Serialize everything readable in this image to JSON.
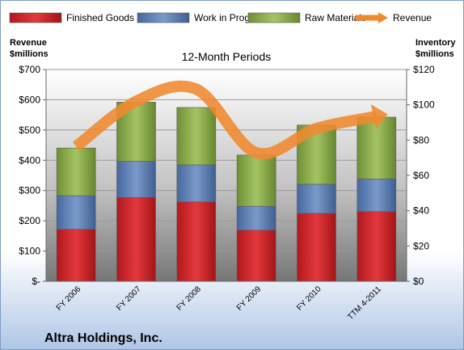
{
  "chart_data": {
    "type": "bar",
    "stacked": true,
    "subtitle": "12-Month Periods",
    "company": "Altra Holdings, Inc.",
    "left_axis_label": [
      "Revenue",
      "$millions"
    ],
    "right_axis_label": [
      "Inventory",
      "$millions"
    ],
    "categories": [
      "FY 2006",
      "FY 2007",
      "FY 2008",
      "FY 2009",
      "FY 2010",
      "TTM 4-2011"
    ],
    "left_ticks": [
      "$-",
      "$100",
      "$200",
      "$300",
      "$400",
      "$500",
      "$600",
      "$700"
    ],
    "right_ticks": [
      "$0",
      "$20",
      "$40",
      "$60",
      "$80",
      "$100",
      "$120"
    ],
    "ylim_left": [
      0,
      700
    ],
    "ylim_right": [
      0,
      120
    ],
    "grid": true,
    "legend_position": "top",
    "series": [
      {
        "name": "Finished Goods",
        "axis": "right",
        "color": "#d0262b",
        "values": [
          29.5,
          47.5,
          45,
          29,
          38.5,
          39.5
        ]
      },
      {
        "name": "Work in Progress",
        "axis": "right",
        "color": "#5a7cb5",
        "values": [
          19,
          20.5,
          21,
          13.5,
          16.5,
          18.5
        ]
      },
      {
        "name": "Raw Materials",
        "axis": "right",
        "color": "#8fb04e",
        "values": [
          27,
          33.5,
          32.5,
          29,
          33.5,
          35
        ]
      }
    ],
    "line": {
      "name": "Revenue",
      "axis": "left",
      "color": "#f0892e",
      "values": [
        445,
        595,
        635,
        425,
        505,
        545
      ]
    }
  }
}
